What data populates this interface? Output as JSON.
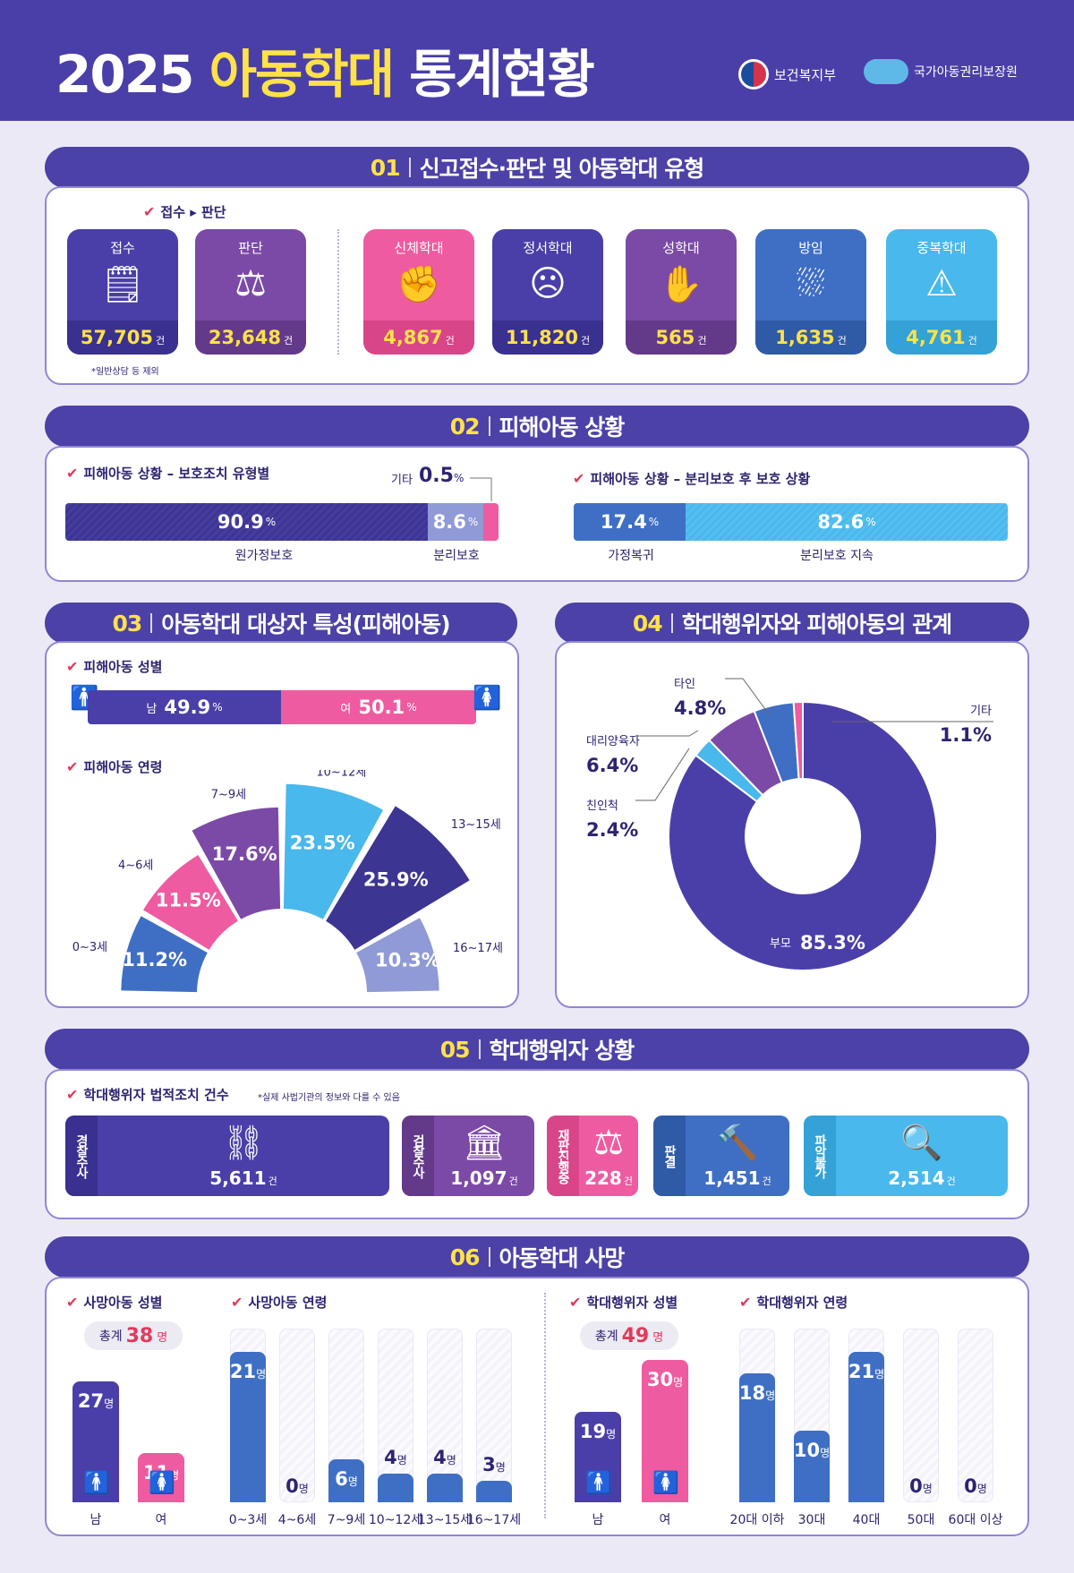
{
  "header": {
    "year": "2025",
    "title_hl": "아동학대",
    "title_rest": "통계현황",
    "org1": "보건복지부",
    "org2": "국가아동권리보장원"
  },
  "s1": {
    "num": "01",
    "title": "신고접수·판단 및 아동학대 유형",
    "legend": "접수 ▸ 판단",
    "note": "*일반상담 등 제외",
    "unit": "건",
    "items": [
      {
        "label": "접수",
        "value": "57,705",
        "icon": "report-icon",
        "color": "#4a3fa8",
        "dark": "#3a3090"
      },
      {
        "label": "판단",
        "value": "23,648",
        "icon": "scale-icon",
        "color": "#7b4aa6",
        "dark": "#633a8a"
      },
      {
        "label": "신체학대",
        "value": "4,867",
        "icon": "physical-abuse-icon",
        "color": "#ee5ba0",
        "dark": "#d84589"
      },
      {
        "label": "정서학대",
        "value": "11,820",
        "icon": "emotional-abuse-icon",
        "color": "#4a3fa8",
        "dark": "#3a3090"
      },
      {
        "label": "성학대",
        "value": "565",
        "icon": "sexual-abuse-icon",
        "color": "#7b4aa6",
        "dark": "#633a8a"
      },
      {
        "label": "방임",
        "value": "1,635",
        "icon": "neglect-icon",
        "color": "#3f6fc4",
        "dark": "#2f5aa6"
      },
      {
        "label": "중복학대",
        "value": "4,761",
        "icon": "multiple-abuse-icon",
        "color": "#49b8ec",
        "dark": "#34a2d6"
      }
    ]
  },
  "s2": {
    "num": "02",
    "title": "피해아동 상황",
    "left": {
      "label": "피해아동 상황 – 보호조치 유형별",
      "etc_label": "기타",
      "etc_value": "0.5",
      "a_value": "90.9",
      "a_label": "원가정보호",
      "b_value": "8.6",
      "b_label": "분리보호"
    },
    "right": {
      "label": "피해아동 상황 – 분리보호 후 보호 상황",
      "a_value": "17.4",
      "a_label": "가정복귀",
      "b_value": "82.6",
      "b_label": "분리보호 지속"
    },
    "pct": "%"
  },
  "s3": {
    "num": "03",
    "title": "아동학대 대상자 특성(피해아동)",
    "gender_label": "피해아동 성별",
    "male": "남",
    "male_value": "49.9",
    "female": "여",
    "female_value": "50.1",
    "age_label": "피해아동 연령"
  },
  "s4": {
    "num": "04",
    "title": "학대행위자와 피해아동의 관계"
  },
  "chart_data": [
    {
      "type": "pie",
      "title": "피해아동 연령",
      "categories": [
        "0~3세",
        "4~6세",
        "7~9세",
        "10~12세",
        "13~15세",
        "16~17세"
      ],
      "values": [
        11.2,
        11.5,
        17.6,
        23.5,
        25.9,
        10.3
      ],
      "unit": "%",
      "colors": [
        "#3f6fc4",
        "#ee5ba0",
        "#7b4aa6",
        "#49b8ec",
        "#3d3592",
        "#8f9ad6"
      ]
    },
    {
      "type": "pie",
      "title": "학대행위자와 피해아동의 관계",
      "categories": [
        "부모",
        "친인척",
        "대리양육자",
        "타인",
        "기타"
      ],
      "values": [
        85.3,
        2.4,
        6.4,
        4.8,
        1.1
      ],
      "unit": "%",
      "colors": [
        "#4a3fa8",
        "#49b8ec",
        "#7b4aa6",
        "#3f6fc4",
        "#ee5ba0"
      ]
    },
    {
      "type": "bar",
      "title": "사망아동 성별",
      "categories": [
        "남",
        "여"
      ],
      "values": [
        27,
        11
      ],
      "unit": "명"
    },
    {
      "type": "bar",
      "title": "사망아동 연령",
      "categories": [
        "0~3세",
        "4~6세",
        "7~9세",
        "10~12세",
        "13~15세",
        "16~17세"
      ],
      "values": [
        21,
        0,
        6,
        4,
        4,
        3
      ],
      "unit": "명"
    },
    {
      "type": "bar",
      "title": "학대행위자 성별",
      "categories": [
        "남",
        "여"
      ],
      "values": [
        19,
        30
      ],
      "unit": "명"
    },
    {
      "type": "bar",
      "title": "학대행위자 연령",
      "categories": [
        "20대 이하",
        "30대",
        "40대",
        "50대",
        "60대 이상"
      ],
      "values": [
        18,
        10,
        21,
        0,
        0
      ],
      "unit": "명"
    }
  ],
  "s5": {
    "num": "05",
    "title": "학대행위자 상황",
    "label": "학대행위자 법적조치 건수",
    "note": "*실제 사법기관의 정보와 다를 수 있음",
    "unit": "건",
    "items": [
      {
        "side": "경찰수사",
        "value": "5,611",
        "icon": "handcuffs-icon",
        "color": "#4a3fa8",
        "dark": "#3a3090"
      },
      {
        "side": "검찰수사",
        "value": "1,097",
        "icon": "courthouse-icon",
        "color": "#7b4aa6",
        "dark": "#633a8a"
      },
      {
        "side": "재판진행중",
        "value": "228",
        "icon": "scale-icon",
        "color": "#ee5ba0",
        "dark": "#d84589"
      },
      {
        "side": "판결",
        "value": "1,451",
        "icon": "gavel-icon",
        "color": "#3f6fc4",
        "dark": "#2f5aa6"
      },
      {
        "side": "파악불가",
        "value": "2,514",
        "icon": "magnifier-icon",
        "color": "#49b8ec",
        "dark": "#34a2d6"
      }
    ]
  },
  "s6": {
    "num": "06",
    "title": "아동학대 사망",
    "unit": "명",
    "total_label": "총계",
    "child_gender_label": "사망아동 성별",
    "child_total": "38",
    "child_age_label": "사망아동 연령",
    "abuser_gender_label": "학대행위자 성별",
    "abuser_total": "49",
    "abuser_age_label": "학대행위자 연령"
  }
}
